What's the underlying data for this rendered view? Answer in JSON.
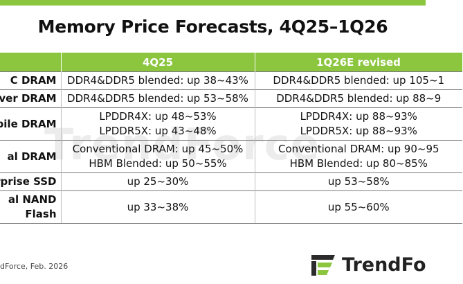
{
  "title": "Memory Price Forecasts, 4Q25–1Q26",
  "watermark": "TrendForce",
  "table": {
    "headers": [
      "",
      "4Q25",
      "1Q26E revised"
    ],
    "rows": [
      {
        "category": [
          "C DRAM"
        ],
        "q4": [
          "DDR4&DDR5 blended: up 38~43%"
        ],
        "q1": [
          "DDR4&DDR5 blended: up 105~1"
        ]
      },
      {
        "category": [
          "ver DRAM"
        ],
        "q4": [
          "DDR4&DDR5 blended: up 53~58%"
        ],
        "q1": [
          "DDR4&DDR5 blended: up 88~9"
        ]
      },
      {
        "category": [
          "bile DRAM"
        ],
        "q4": [
          "LPDDR4X: up 48~53%",
          "LPDDR5X: up 43~48%"
        ],
        "q1": [
          "LPDDR4X: up 88~93%",
          "LPDDR5X: up 88~93%"
        ]
      },
      {
        "category": [
          "al DRAM"
        ],
        "q4": [
          "Conventional DRAM: up 45~50%",
          "HBM Blended: up 50~55%"
        ],
        "q1": [
          "Conventional DRAM: up 90~95",
          "HBM Blended: up 80~85%"
        ]
      },
      {
        "category": [
          "rprise SSD"
        ],
        "q4": [
          "up 25~30%"
        ],
        "q1": [
          "up 53~58%"
        ]
      },
      {
        "category": [
          "al NAND",
          "Flash"
        ],
        "q4": [
          "up 33~38%"
        ],
        "q1": [
          "up 55~60%"
        ]
      }
    ]
  },
  "source": "dForce, Feb. 2026",
  "logo": {
    "text": "TrendFo",
    "icon": "trendforce-logo-icon"
  },
  "colors": {
    "accent": "#8cc63f",
    "header_text": "#ffffff",
    "rule": "#7a7a7a"
  }
}
